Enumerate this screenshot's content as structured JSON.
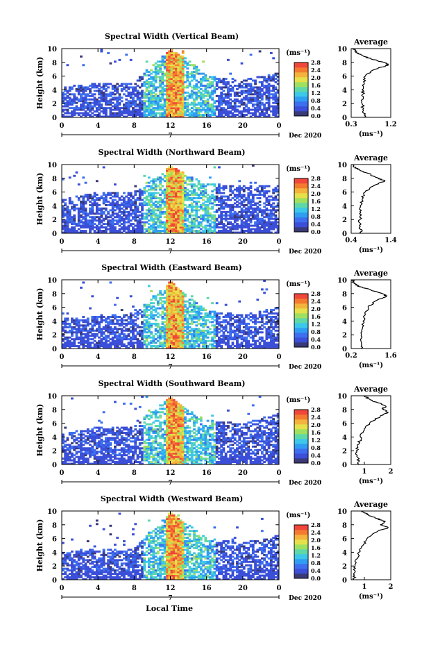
{
  "figure": {
    "x_axis_label": "Local Time",
    "month_label": "Dec 2020",
    "day_label": "7",
    "x_ticks": [
      "0",
      "4",
      "8",
      "12",
      "16",
      "20",
      "0"
    ],
    "y_label": "Height (km)",
    "y_ticks": [
      "0",
      "2",
      "4",
      "6",
      "8",
      "10"
    ],
    "colorbar_unit": "(ms⁻¹)",
    "colorbar_ticks": [
      "0.0",
      "0.4",
      "0.8",
      "1.2",
      "1.6",
      "2.0",
      "2.4",
      "2.8"
    ],
    "colorbar_colors": [
      "#3a3a78",
      "#3b4fd8",
      "#3d6ff0",
      "#2f9ef2",
      "#3cc8e8",
      "#5fd8a8",
      "#9fe060",
      "#e6e04a",
      "#f3b33c",
      "#f47a30",
      "#f0473a"
    ],
    "avg_title": "Average",
    "avg_unit_label": "(ms⁻¹)"
  },
  "chart_data": [
    {
      "type": "heatmap",
      "title": "Spectral Width (Vertical Beam)",
      "xlabel": "Local Time",
      "ylabel": "Height (km)",
      "xlim": [
        0,
        24
      ],
      "ylim": [
        0,
        10
      ],
      "color_range": [
        0,
        2.8
      ],
      "cloud_tops_km": [
        [
          0,
          4.5
        ],
        [
          4,
          5
        ],
        [
          8,
          5
        ],
        [
          10,
          7.8
        ],
        [
          12,
          9.8
        ],
        [
          14,
          8.5
        ],
        [
          16,
          6
        ],
        [
          20,
          5.5
        ],
        [
          24,
          6.5
        ]
      ],
      "convective_core": {
        "start_h": 11.4,
        "end_h": 13.4,
        "top_km": 9.8
      },
      "average_profile": {
        "xlim": [
          0.3,
          1.2
        ],
        "x_ticks": [
          "0.3",
          "1.2"
        ],
        "height_km": [
          0,
          1,
          2,
          3,
          4,
          5,
          6,
          7,
          7.6,
          8,
          8.5,
          9,
          9.5,
          10
        ],
        "mean_width": [
          0.6,
          0.58,
          0.55,
          0.58,
          0.55,
          0.6,
          0.62,
          0.85,
          1.15,
          1.05,
          0.75,
          0.55,
          0.4,
          0.35
        ]
      }
    },
    {
      "type": "heatmap",
      "title": "Spectral Width (Northward Beam)",
      "xlabel": "Local Time",
      "ylabel": "Height (km)",
      "xlim": [
        0,
        24
      ],
      "ylim": [
        0,
        10
      ],
      "color_range": [
        0,
        2.8
      ],
      "cloud_tops_km": [
        [
          0,
          5
        ],
        [
          4,
          6
        ],
        [
          8,
          6
        ],
        [
          10,
          8
        ],
        [
          12,
          9.8
        ],
        [
          14,
          8.5
        ],
        [
          16,
          7.2
        ],
        [
          20,
          7
        ],
        [
          24,
          7
        ]
      ],
      "convective_core": {
        "start_h": 11.4,
        "end_h": 13.4,
        "top_km": 9.8
      },
      "average_profile": {
        "xlim": [
          0.4,
          1.4
        ],
        "x_ticks": [
          "0.4",
          "1.4"
        ],
        "height_km": [
          0,
          1,
          2,
          3,
          4,
          5,
          6,
          7,
          7.6,
          8,
          8.5,
          9,
          9.5,
          10
        ],
        "mean_width": [
          0.65,
          0.63,
          0.62,
          0.64,
          0.63,
          0.68,
          0.75,
          1.0,
          1.25,
          1.1,
          0.9,
          0.7,
          0.5,
          0.45
        ]
      }
    },
    {
      "type": "heatmap",
      "title": "Spectral Width (Eastward Beam)",
      "xlabel": "Local Time",
      "ylabel": "Height (km)",
      "xlim": [
        0,
        24
      ],
      "ylim": [
        0,
        10
      ],
      "color_range": [
        0,
        2.8
      ],
      "cloud_tops_km": [
        [
          0,
          4.5
        ],
        [
          4,
          4.8
        ],
        [
          8,
          5
        ],
        [
          10,
          7.5
        ],
        [
          12,
          9.8
        ],
        [
          14,
          7.5
        ],
        [
          16,
          5.5
        ],
        [
          20,
          5
        ],
        [
          24,
          6
        ]
      ],
      "convective_core": {
        "start_h": 11.4,
        "end_h": 13.4,
        "top_km": 9.8
      },
      "average_profile": {
        "xlim": [
          0.2,
          1.6
        ],
        "x_ticks": [
          "0.2",
          "1.6"
        ],
        "height_km": [
          0,
          1,
          2,
          3,
          4,
          5,
          6,
          7,
          7.6,
          8,
          8.5,
          9,
          9.5,
          10
        ],
        "mean_width": [
          0.55,
          0.55,
          0.56,
          0.6,
          0.62,
          0.7,
          0.8,
          1.1,
          1.45,
          1.3,
          0.9,
          0.5,
          0.3,
          0.25
        ]
      }
    },
    {
      "type": "heatmap",
      "title": "Spectral Width (Southward Beam)",
      "xlabel": "Local Time",
      "ylabel": "Height (km)",
      "xlim": [
        0,
        24
      ],
      "ylim": [
        0,
        10
      ],
      "color_range": [
        0,
        2.8
      ],
      "cloud_tops_km": [
        [
          0,
          4.5
        ],
        [
          4,
          5.5
        ],
        [
          8,
          5.5
        ],
        [
          10,
          8
        ],
        [
          12,
          9.8
        ],
        [
          14,
          8
        ],
        [
          16,
          6.5
        ],
        [
          20,
          6
        ],
        [
          24,
          7.5
        ]
      ],
      "convective_core": {
        "start_h": 11.4,
        "end_h": 13.4,
        "top_km": 9.8
      },
      "average_profile": {
        "xlim": [
          0.5,
          2
        ],
        "x_ticks": [
          "1",
          "2"
        ],
        "height_km": [
          0,
          1,
          2,
          3,
          4,
          5,
          6,
          7,
          7.6,
          8,
          8.5,
          9,
          9.5,
          10
        ],
        "mean_width": [
          0.8,
          0.75,
          0.7,
          0.8,
          0.85,
          1.0,
          1.2,
          1.6,
          1.9,
          1.7,
          1.8,
          1.5,
          1.2,
          1.0
        ]
      }
    },
    {
      "type": "heatmap",
      "title": "Spectral Width (Westward Beam)",
      "xlabel": "Local Time",
      "ylabel": "Height (km)",
      "xlim": [
        0,
        24
      ],
      "ylim": [
        0,
        10
      ],
      "color_range": [
        0,
        2.8
      ],
      "cloud_tops_km": [
        [
          0,
          4
        ],
        [
          4,
          4.5
        ],
        [
          8,
          4.5
        ],
        [
          10,
          7.5
        ],
        [
          12,
          9.8
        ],
        [
          14,
          8
        ],
        [
          16,
          6
        ],
        [
          20,
          5.5
        ],
        [
          24,
          6.5
        ]
      ],
      "convective_core": {
        "start_h": 11.4,
        "end_h": 13.4,
        "top_km": 9.8
      },
      "average_profile": {
        "xlim": [
          0.5,
          2
        ],
        "x_ticks": [
          "1",
          "2"
        ],
        "height_km": [
          0,
          1,
          2,
          3,
          4,
          5,
          6,
          7,
          7.6,
          8,
          8.5,
          9,
          9.5,
          10
        ],
        "mean_width": [
          0.6,
          0.62,
          0.65,
          0.7,
          0.8,
          0.95,
          1.1,
          1.5,
          1.9,
          1.6,
          1.8,
          1.4,
          1.1,
          0.9
        ]
      }
    }
  ]
}
